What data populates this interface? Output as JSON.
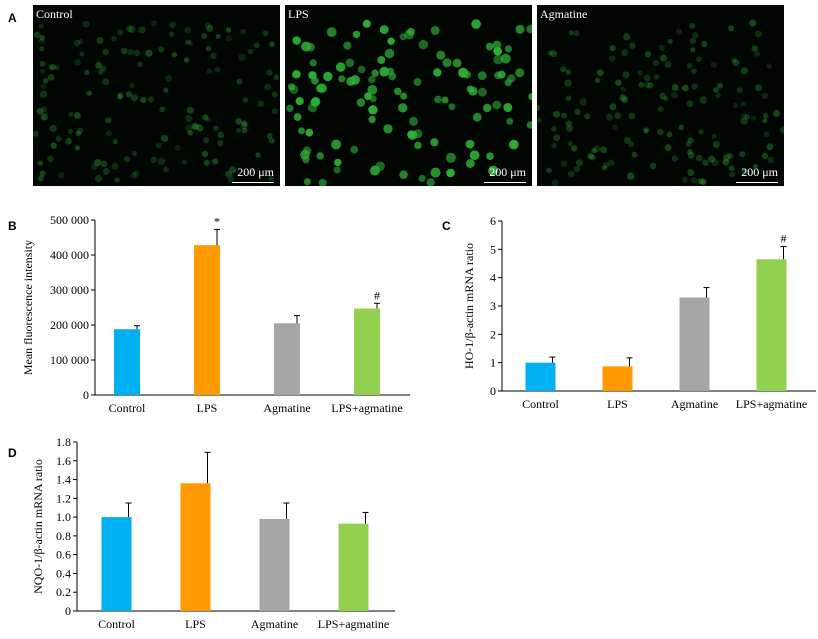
{
  "panels": {
    "a": {
      "letter": "A"
    },
    "b": {
      "letter": "B"
    },
    "c": {
      "letter": "C"
    },
    "d": {
      "letter": "D"
    }
  },
  "micrographs": [
    {
      "label": "Control",
      "scale": "200 μm",
      "intensity": "dim"
    },
    {
      "label": "LPS",
      "scale": "200 μm",
      "intensity": "bright"
    },
    {
      "label": "Agmatine",
      "scale": "200 μm",
      "intensity": "dim"
    }
  ],
  "colors": {
    "control": "#00b0f0",
    "lps": "#ff9900",
    "agmatine": "#a6a6a6",
    "lps_agmatine": "#92d050",
    "cell": "#2fae37"
  },
  "chart_data": [
    {
      "id": "b",
      "type": "bar",
      "categories": [
        "Control",
        "LPS",
        "Agmatine",
        "LPS+agmatine"
      ],
      "values": [
        188000,
        428000,
        205000,
        247000
      ],
      "errors": [
        10000,
        45000,
        22000,
        15000
      ],
      "annotations": [
        "",
        "*",
        "",
        "#"
      ],
      "ylabel": "Mean fluorescence intensity",
      "ylim": [
        0,
        500000
      ],
      "yticks": [
        0,
        100000,
        200000,
        300000,
        400000,
        500000
      ],
      "yticklabels": [
        "0",
        "100 000",
        "200 000",
        "300 000",
        "400 000",
        "500 000"
      ]
    },
    {
      "id": "c",
      "type": "bar",
      "categories": [
        "Control",
        "LPS",
        "Agmatine",
        "LPS+agmatine"
      ],
      "values": [
        1.0,
        0.87,
        3.3,
        4.65
      ],
      "errors": [
        0.2,
        0.3,
        0.35,
        0.45
      ],
      "annotations": [
        "",
        "",
        "",
        "#"
      ],
      "ylabel": "HO-1/β-actin mRNA ratio",
      "ylim": [
        0,
        6
      ],
      "yticks": [
        0,
        1,
        2,
        3,
        4,
        5,
        6
      ],
      "yticklabels": [
        "0",
        "1",
        "2",
        "3",
        "4",
        "5",
        "6"
      ]
    },
    {
      "id": "d",
      "type": "bar",
      "categories": [
        "Control",
        "LPS",
        "Agmatine",
        "LPS+agmatine"
      ],
      "values": [
        1.0,
        1.36,
        0.98,
        0.93
      ],
      "errors": [
        0.15,
        0.33,
        0.17,
        0.12
      ],
      "annotations": [
        "",
        "",
        "",
        ""
      ],
      "ylabel": "NQO-1/β-actin mRNA ratio",
      "ylim": [
        0,
        1.8
      ],
      "yticks": [
        0,
        0.2,
        0.4,
        0.6,
        0.8,
        1.0,
        1.2,
        1.4,
        1.6,
        1.8
      ],
      "yticklabels": [
        "0",
        "0.2",
        "0.4",
        "0.6",
        "0.8",
        "1.0",
        "1.2",
        "1.4",
        "1.6",
        "1.8"
      ]
    }
  ]
}
